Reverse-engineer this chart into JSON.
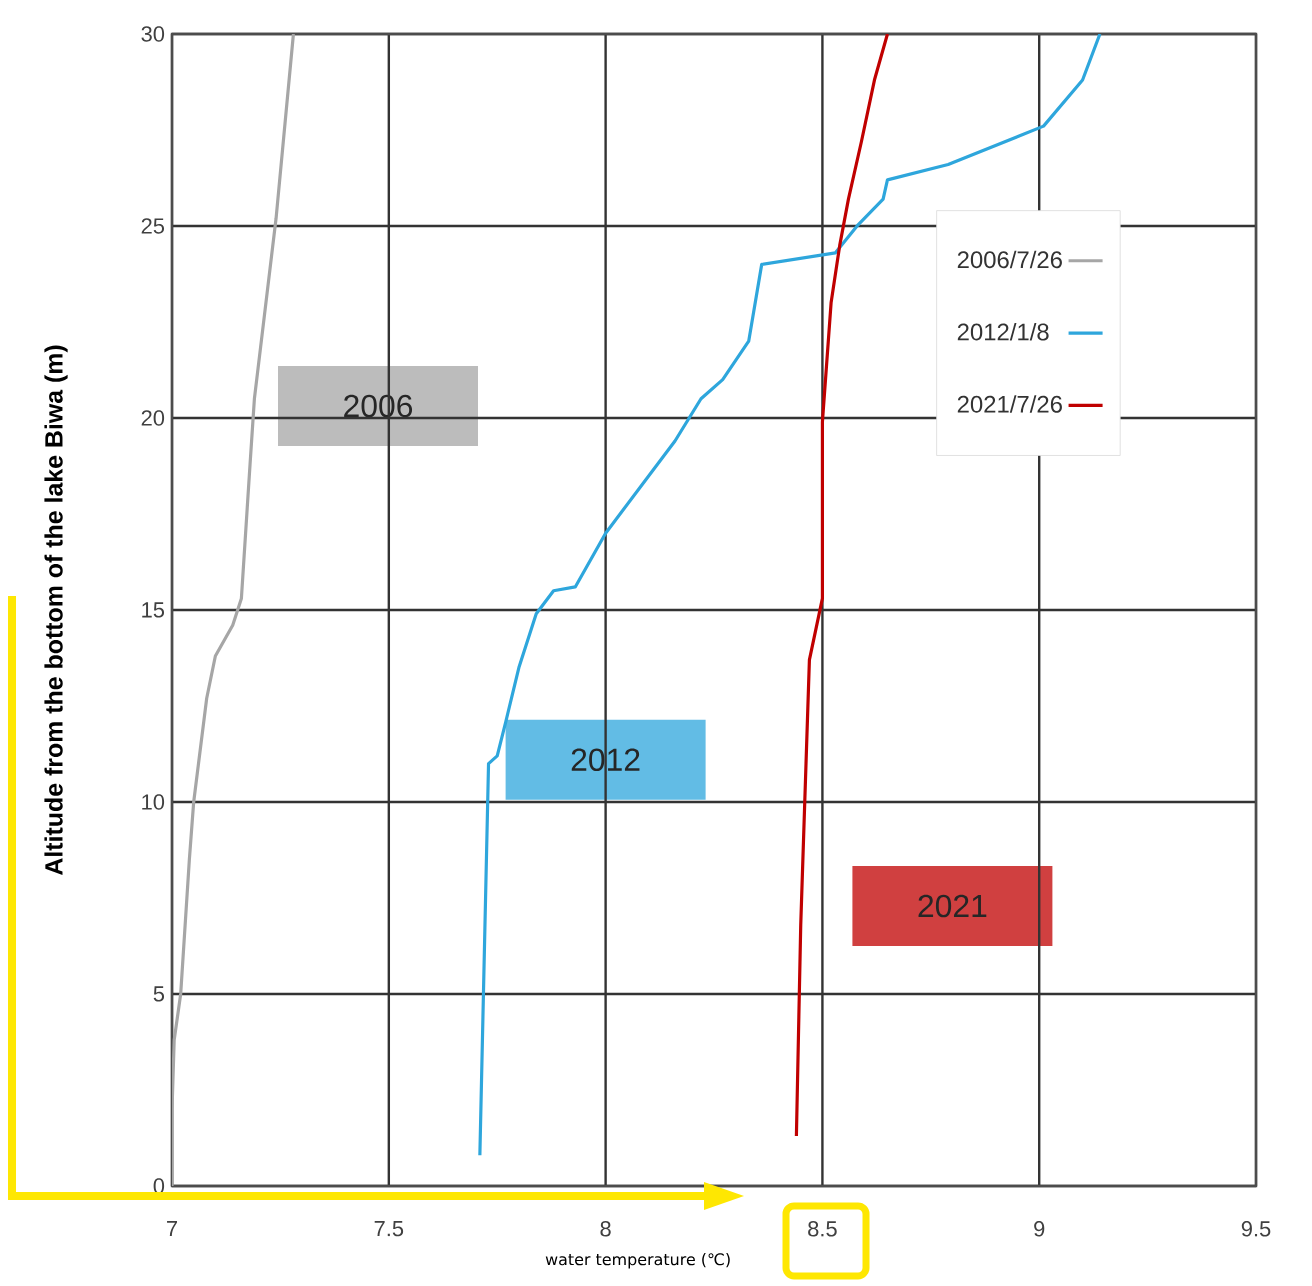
{
  "chart_data": {
    "type": "line",
    "xlabel": "water temperature (℃)",
    "ylabel": "Altitude from the bottom of the lake Biwa (m)",
    "xlim": [
      7,
      9.5
    ],
    "ylim": [
      0,
      30
    ],
    "xticks": [
      7,
      7.5,
      8,
      8.5,
      9,
      9.5
    ],
    "yticks": [
      0,
      5,
      10,
      15,
      20,
      25,
      30
    ],
    "grid": true,
    "legend": "right",
    "series": [
      {
        "name": "2006/7/26",
        "color": "#a6a6a6",
        "x": [
          7.0,
          7.0,
          7.005,
          7.02,
          7.04,
          7.05,
          7.08,
          7.1,
          7.14,
          7.16,
          7.18,
          7.19,
          7.24,
          7.28
        ],
        "values": [
          0,
          2,
          3.8,
          5,
          8.5,
          10,
          12.7,
          13.8,
          14.6,
          15.3,
          18.8,
          20.5,
          25.2,
          30
        ]
      },
      {
        "name": "2012/1/8",
        "color": "#2ea6dc",
        "x": [
          7.71,
          7.73,
          7.75,
          7.77,
          7.8,
          7.84,
          7.88,
          7.93,
          7.99,
          8.0,
          8.16,
          8.22,
          8.27,
          8.33,
          8.36,
          8.53,
          8.58,
          8.64,
          8.65,
          8.79,
          9.01,
          9.1,
          9.14
        ],
        "values": [
          0.8,
          11,
          11.2,
          12.1,
          13.5,
          14.9,
          15.5,
          15.6,
          16.8,
          17,
          19.4,
          20.5,
          21,
          22,
          24,
          24.3,
          25,
          25.7,
          26.2,
          26.6,
          27.6,
          28.8,
          30
        ]
      },
      {
        "name": "2021/7/26",
        "color": "#c00000",
        "x": [
          8.44,
          8.45,
          8.47,
          8.5,
          8.5,
          8.52,
          8.54,
          8.56,
          8.59,
          8.62,
          8.65
        ],
        "values": [
          1.3,
          6.8,
          13.7,
          15.3,
          19.9,
          23,
          24.5,
          25.7,
          27.2,
          28.8,
          30
        ]
      }
    ],
    "annotations": [
      "2006",
      "2012",
      "2021"
    ]
  }
}
